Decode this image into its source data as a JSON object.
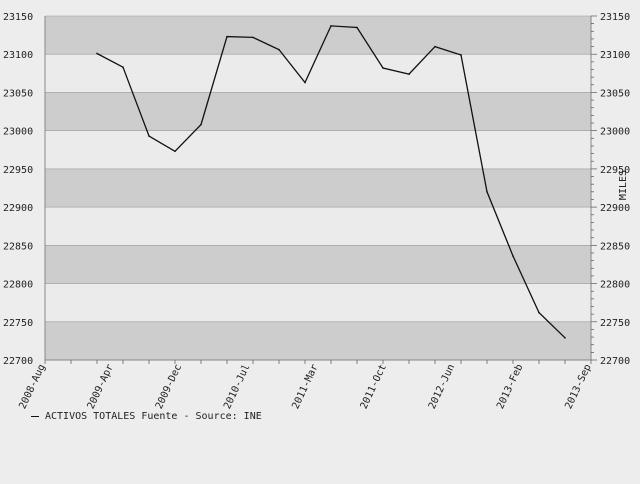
{
  "chart_data": {
    "type": "line",
    "x": [
      "2008-Aug",
      "2008-Nov",
      "2009-Feb",
      "2009-May",
      "2009-Aug",
      "2009-Nov",
      "2010-Feb",
      "2010-May",
      "2010-Aug",
      "2010-Nov",
      "2011-Feb",
      "2011-May",
      "2011-Aug",
      "2011-Nov",
      "2012-Feb",
      "2012-May",
      "2012-Aug",
      "2012-Nov",
      "2013-Feb",
      "2013-May",
      "2013-Aug",
      "2013-Sep"
    ],
    "x_tick_labels": [
      "2008-Aug",
      "2009-Apr",
      "2009-Dec",
      "2010-Jul",
      "2011-Mar",
      "2011-Oct",
      "2012-Jun",
      "2013-Feb",
      "2013-Sep"
    ],
    "series": [
      {
        "name": "ACTIVOS TOTALES",
        "values": [
          null,
          null,
          23101,
          23083,
          22993,
          22973,
          23008,
          23123,
          23122,
          23106,
          23063,
          23137,
          23135,
          23082,
          23074,
          23110,
          23099,
          22920,
          22836,
          22762,
          22729,
          null
        ]
      }
    ],
    "ylim": [
      22700,
      23150
    ],
    "y_ticks": [
      22700,
      22750,
      22800,
      22850,
      22900,
      22950,
      23000,
      23050,
      23100,
      23150
    ],
    "ylabel_right": "MILES",
    "legend_text": "ACTIVOS TOTALES  Fuente - Source: INE",
    "legend_position": "bottom-left",
    "grid": "alternating horizontal bands",
    "colors": {
      "background": "#ededed",
      "band_light": "#ebebeb",
      "band_dark": "#cdcdcd",
      "line": "#111111"
    }
  }
}
